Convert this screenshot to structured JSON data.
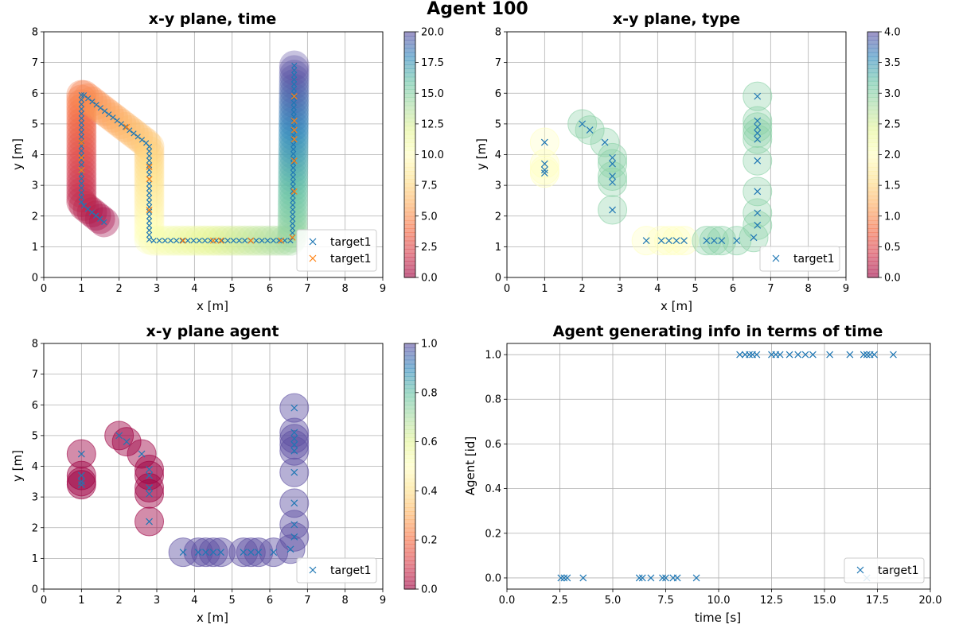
{
  "figure": {
    "suptitle": "Agent 100"
  },
  "chart_data": [
    {
      "id": "time",
      "type": "scatter",
      "title": "x-y plane, time",
      "xlabel": "x [m]",
      "ylabel": "y [m]",
      "xlim": [
        0,
        9
      ],
      "ylim": [
        0,
        8
      ],
      "xticks": [
        0,
        1,
        2,
        3,
        4,
        5,
        6,
        7,
        8,
        9
      ],
      "yticks": [
        0,
        1,
        2,
        3,
        4,
        5,
        6,
        7,
        8
      ],
      "grid": true,
      "colormap": "Spectral",
      "colorbar": {
        "min": 0,
        "max": 20,
        "ticks": [
          "0.0",
          "2.5",
          "5.0",
          "7.5",
          "10.0",
          "12.5",
          "15.0",
          "17.5",
          "20.0"
        ]
      },
      "legend": {
        "position": "lower-right",
        "entries": [
          {
            "name": "target1",
            "color": "#1f77b4"
          },
          {
            "name": "target1",
            "color": "#ff7f0e"
          }
        ]
      },
      "path": [
        [
          1.6,
          1.8
        ],
        [
          1.0,
          2.4
        ],
        [
          1.0,
          6.0
        ],
        [
          2.8,
          4.3
        ],
        [
          2.8,
          1.2
        ],
        [
          6.6,
          1.2
        ],
        [
          6.65,
          6.9
        ]
      ],
      "series": [
        {
          "name": "target1",
          "color": "#1f77b4",
          "marker": "x",
          "path_samples": 130
        },
        {
          "name": "target1",
          "color": "#ff7f0e",
          "marker": "x",
          "points": [
            [
              1.0,
              3.5
            ],
            [
              1.0,
              4.4
            ],
            [
              1.0,
              3.9
            ],
            [
              2.2,
              4.9
            ],
            [
              2.8,
              2.2
            ],
            [
              2.8,
              3.6
            ],
            [
              2.8,
              3.2
            ],
            [
              3.7,
              1.2
            ],
            [
              4.5,
              1.2
            ],
            [
              4.7,
              1.2
            ],
            [
              5.5,
              1.2
            ],
            [
              6.3,
              1.2
            ],
            [
              6.6,
              1.3
            ],
            [
              6.65,
              2.8
            ],
            [
              6.65,
              3.8
            ],
            [
              6.65,
              4.5
            ],
            [
              6.65,
              4.8
            ],
            [
              6.65,
              5.1
            ],
            [
              6.65,
              5.9
            ]
          ]
        }
      ]
    },
    {
      "id": "type",
      "type": "scatter",
      "title": "x-y plane, type",
      "xlabel": "x [m]",
      "ylabel": "y [m]",
      "xlim": [
        0,
        9
      ],
      "ylim": [
        0,
        8
      ],
      "xticks": [
        0,
        1,
        2,
        3,
        4,
        5,
        6,
        7,
        8,
        9
      ],
      "yticks": [
        0,
        1,
        2,
        3,
        4,
        5,
        6,
        7,
        8
      ],
      "grid": true,
      "colormap": "Spectral",
      "colorbar": {
        "min": 0,
        "max": 4,
        "ticks": [
          "0.0",
          "0.5",
          "1.0",
          "1.5",
          "2.0",
          "2.5",
          "3.0",
          "3.5",
          "4.0"
        ]
      },
      "legend": {
        "position": "lower-right",
        "entries": [
          {
            "name": "target1",
            "color": "#1f77b4"
          }
        ]
      },
      "series": [
        {
          "name": "target1",
          "color": "#1f77b4",
          "marker": "x",
          "points": [
            [
              1.0,
              4.4,
              2
            ],
            [
              1.0,
              3.7,
              2
            ],
            [
              1.0,
              3.5,
              2
            ],
            [
              1.0,
              3.4,
              2
            ],
            [
              2.0,
              5.0,
              3
            ],
            [
              2.2,
              4.8,
              3
            ],
            [
              2.6,
              4.4,
              3
            ],
            [
              2.8,
              3.9,
              3
            ],
            [
              2.8,
              3.7,
              3
            ],
            [
              2.8,
              3.3,
              3
            ],
            [
              2.8,
              3.1,
              3
            ],
            [
              2.8,
              2.2,
              3
            ],
            [
              3.7,
              1.2,
              2
            ],
            [
              4.1,
              1.2,
              2
            ],
            [
              4.3,
              1.2,
              2
            ],
            [
              4.5,
              1.2,
              2
            ],
            [
              4.7,
              1.2,
              2
            ],
            [
              5.3,
              1.2,
              3
            ],
            [
              5.5,
              1.2,
              3
            ],
            [
              5.7,
              1.2,
              3
            ],
            [
              6.1,
              1.2,
              3
            ],
            [
              6.55,
              1.3,
              3
            ],
            [
              6.65,
              1.7,
              3
            ],
            [
              6.65,
              2.1,
              3
            ],
            [
              6.65,
              2.8,
              3
            ],
            [
              6.65,
              3.8,
              3
            ],
            [
              6.65,
              4.5,
              3
            ],
            [
              6.65,
              4.7,
              3
            ],
            [
              6.65,
              4.9,
              3
            ],
            [
              6.65,
              5.1,
              3
            ],
            [
              6.65,
              5.9,
              3
            ]
          ]
        }
      ]
    },
    {
      "id": "agent",
      "type": "scatter",
      "title": "x-y plane agent",
      "xlabel": "x [m]",
      "ylabel": "y [m]",
      "xlim": [
        0,
        9
      ],
      "ylim": [
        0,
        8
      ],
      "xticks": [
        0,
        1,
        2,
        3,
        4,
        5,
        6,
        7,
        8,
        9
      ],
      "yticks": [
        0,
        1,
        2,
        3,
        4,
        5,
        6,
        7,
        8
      ],
      "grid": true,
      "colormap": "Spectral",
      "colorbar": {
        "min": 0,
        "max": 1,
        "ticks": [
          "0.0",
          "0.2",
          "0.4",
          "0.6",
          "0.8",
          "1.0"
        ]
      },
      "legend": {
        "position": "lower-right",
        "entries": [
          {
            "name": "target1",
            "color": "#1f77b4"
          }
        ]
      },
      "series": [
        {
          "name": "target1",
          "color": "#1f77b4",
          "marker": "x",
          "points": [
            [
              1.0,
              4.4,
              0
            ],
            [
              1.0,
              3.7,
              0
            ],
            [
              1.0,
              3.5,
              0
            ],
            [
              1.0,
              3.4,
              0
            ],
            [
              2.0,
              5.0,
              0
            ],
            [
              2.2,
              4.8,
              0
            ],
            [
              2.6,
              4.4,
              0
            ],
            [
              2.8,
              3.9,
              0
            ],
            [
              2.8,
              3.7,
              0
            ],
            [
              2.8,
              3.3,
              0
            ],
            [
              2.8,
              3.1,
              0
            ],
            [
              2.8,
              2.2,
              0
            ],
            [
              3.7,
              1.2,
              1
            ],
            [
              4.1,
              1.2,
              1
            ],
            [
              4.3,
              1.2,
              1
            ],
            [
              4.5,
              1.2,
              1
            ],
            [
              4.7,
              1.2,
              1
            ],
            [
              5.3,
              1.2,
              1
            ],
            [
              5.5,
              1.2,
              1
            ],
            [
              5.7,
              1.2,
              1
            ],
            [
              6.1,
              1.2,
              1
            ],
            [
              6.55,
              1.3,
              1
            ],
            [
              6.65,
              1.7,
              1
            ],
            [
              6.65,
              2.1,
              1
            ],
            [
              6.65,
              2.8,
              1
            ],
            [
              6.65,
              3.8,
              1
            ],
            [
              6.65,
              4.5,
              1
            ],
            [
              6.65,
              4.7,
              1
            ],
            [
              6.65,
              4.9,
              1
            ],
            [
              6.65,
              5.1,
              1
            ],
            [
              6.65,
              5.9,
              1
            ]
          ]
        }
      ]
    },
    {
      "id": "timeline",
      "type": "scatter",
      "title": "Agent generating info in terms of time",
      "xlabel": "time [s]",
      "ylabel": "Agent [id]",
      "xlim": [
        0,
        20
      ],
      "ylim": [
        -0.05,
        1.05
      ],
      "xticks": [
        "0.0",
        "2.5",
        "5.0",
        "7.5",
        "10.0",
        "12.5",
        "15.0",
        "17.5",
        "20.0"
      ],
      "yticks": [
        "0.0",
        "0.2",
        "0.4",
        "0.6",
        "0.8",
        "1.0"
      ],
      "grid": true,
      "legend": {
        "position": "lower-right",
        "entries": [
          {
            "name": "target1",
            "color": "#1f77b4"
          }
        ]
      },
      "series": [
        {
          "name": "target1",
          "color": "#1f77b4",
          "marker": "x",
          "points": [
            [
              2.55,
              0
            ],
            [
              2.7,
              0
            ],
            [
              2.85,
              0
            ],
            [
              3.6,
              0
            ],
            [
              6.25,
              0
            ],
            [
              6.4,
              0
            ],
            [
              6.8,
              0
            ],
            [
              7.35,
              0
            ],
            [
              7.5,
              0
            ],
            [
              7.85,
              0
            ],
            [
              8.05,
              0
            ],
            [
              8.95,
              0
            ],
            [
              11.0,
              1
            ],
            [
              11.25,
              1
            ],
            [
              11.45,
              1
            ],
            [
              11.6,
              1
            ],
            [
              11.8,
              1
            ],
            [
              12.5,
              1
            ],
            [
              12.7,
              1
            ],
            [
              12.9,
              1
            ],
            [
              13.35,
              1
            ],
            [
              13.75,
              1
            ],
            [
              14.1,
              1
            ],
            [
              14.45,
              1
            ],
            [
              15.25,
              1
            ],
            [
              16.2,
              1
            ],
            [
              16.85,
              1
            ],
            [
              17.0,
              1
            ],
            [
              17.15,
              1
            ],
            [
              17.35,
              1
            ],
            [
              18.25,
              1
            ],
            [
              17.0,
              0
            ]
          ]
        }
      ]
    }
  ]
}
